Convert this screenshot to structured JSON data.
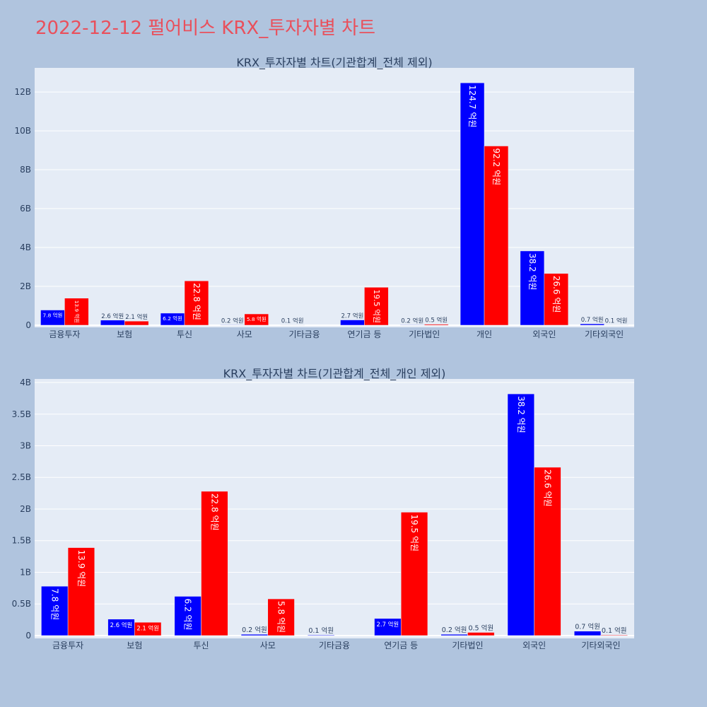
{
  "page_title": "2022-12-12 펄어비스 KRX_투자자별 차트",
  "colors": {
    "page_bg": "#b0c4de",
    "title": "#e9505c",
    "plot_bg": "#e5ecf6",
    "grid": "#ffffff",
    "axis_text": "#2a3f5f",
    "inside_label": "#ffffff"
  },
  "chart_data": [
    {
      "type": "bar",
      "title": "KRX_투자자별 차트(기관합계_전체 제외)",
      "categories": [
        "금융투자",
        "보험",
        "투신",
        "사모",
        "기타금융",
        "연기금 등",
        "기타법인",
        "개인",
        "외국인",
        "기타외국인"
      ],
      "series": [
        {
          "color": "#0000ff",
          "values": [
            0.78,
            0.26,
            0.62,
            0.02,
            0.01,
            0.27,
            0.02,
            12.47,
            3.82,
            0.07
          ],
          "labels": [
            "7.8 억원",
            "2.6 억원",
            "6.2 억원",
            "0.2 억원",
            "0.1 억원",
            "2.7 억원",
            "0.2 억원",
            "124.7 억원",
            "38.2 억원",
            "0.7 억원"
          ]
        },
        {
          "color": "#ff0000",
          "values": [
            1.39,
            0.21,
            2.28,
            0.58,
            null,
            1.95,
            0.05,
            9.22,
            2.66,
            0.01
          ],
          "labels": [
            "13.9 억원",
            "2.1 억원",
            "22.8 억원",
            "5.8 억원",
            null,
            "19.5 억원",
            "0.5 억원",
            "92.2 억원",
            "26.6 억원",
            "0.1 억원"
          ]
        }
      ],
      "yticks": {
        "values": [
          0,
          2,
          4,
          6,
          8,
          10,
          12
        ],
        "labels": [
          "0",
          "2B",
          "4B",
          "6B",
          "8B",
          "10B",
          "12B"
        ]
      },
      "ylim": [
        -0.11,
        13.24
      ],
      "grid": true
    },
    {
      "type": "bar",
      "title": "KRX_투자자별 차트(기관합계_전체_개인 제외)",
      "categories": [
        "금융투자",
        "보험",
        "투신",
        "사모",
        "기타금융",
        "연기금 등",
        "기타법인",
        "외국인",
        "기타외국인"
      ],
      "series": [
        {
          "color": "#0000ff",
          "values": [
            0.78,
            0.26,
            0.62,
            0.02,
            0.01,
            0.27,
            0.02,
            3.82,
            0.07
          ],
          "labels": [
            "7.8 억원",
            "2.6 억원",
            "6.2 억원",
            "0.2 억원",
            "0.1 억원",
            "2.7 억원",
            "0.2 억원",
            "38.2 억원",
            "0.7 억원"
          ]
        },
        {
          "color": "#ff0000",
          "values": [
            1.39,
            0.21,
            2.28,
            0.58,
            null,
            1.95,
            0.05,
            2.66,
            0.01
          ],
          "labels": [
            "13.9 억원",
            "2.1 억원",
            "22.8 억원",
            "5.8 억원",
            null,
            "19.5 억원",
            "0.5 억원",
            "26.6 억원",
            "0.1 억원"
          ]
        }
      ],
      "yticks": {
        "values": [
          0,
          0.5,
          1,
          1.5,
          2,
          2.5,
          3,
          3.5,
          4
        ],
        "labels": [
          "0",
          "0.5B",
          "1B",
          "1.5B",
          "2B",
          "2.5B",
          "3B",
          "3.5B",
          "4B"
        ]
      },
      "ylim": [
        -0.045,
        4.056
      ],
      "grid": true
    }
  ]
}
